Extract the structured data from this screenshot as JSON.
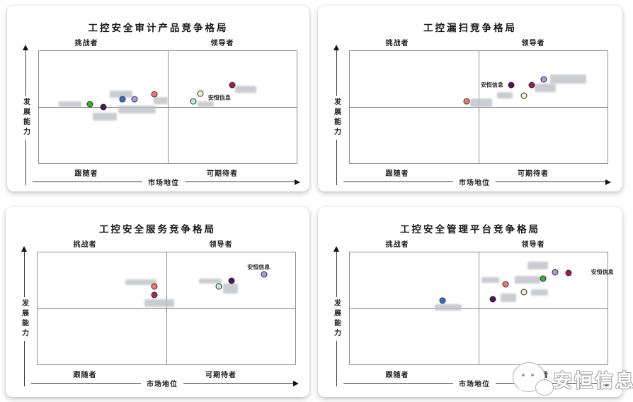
{
  "watermark": {
    "brand_text": "安恒信息",
    "logo": "wechat-speech-bubble-logo"
  },
  "chart_data": [
    {
      "type": "scatter",
      "title": "工控安全审计产品竞争格局",
      "xlabel": "市场地位",
      "ylabel": "发展能力",
      "quadrants": {
        "top_left": "挑战者",
        "top_right": "领导者",
        "bottom_left": "跟随者",
        "bottom_right": "可期待者"
      },
      "axis_note": "no numeric scale; x/y are % of plot area, y measured from top (higher capability = smaller y)",
      "highlight": {
        "label": "安恒信息",
        "x": 64.8,
        "y": 42.0,
        "align": "left"
      },
      "points": [
        {
          "name": "green",
          "color": "#3fae33",
          "x": 19.7,
          "y": 47.5
        },
        {
          "name": "dark-purple",
          "color": "#570a66",
          "x": 24.9,
          "y": 50.0
        },
        {
          "name": "blue",
          "color": "#2e6bd8",
          "x": 32.5,
          "y": 43.2
        },
        {
          "name": "lavender",
          "color": "#a89ae8",
          "x": 37.2,
          "y": 43.2
        },
        {
          "name": "salmon",
          "color": "#f4736b",
          "x": 44.8,
          "y": 38.3
        },
        {
          "name": "light-cyan",
          "color": "#b8ecdc",
          "x": 59.8,
          "y": 45.1
        },
        {
          "name": "pale-yellow",
          "color": "#f4f4c0",
          "x": 62.6,
          "y": 37.7
        },
        {
          "name": "magenta",
          "color": "#a61a5c",
          "x": 74.9,
          "y": 30.2
        }
      ],
      "redacted_blobs": [
        [
          7.7,
          45.1,
          8.7,
          4.9
        ],
        [
          27.6,
          35.2,
          8.7,
          6.8
        ],
        [
          30.9,
          48.8,
          14.5,
          6.8
        ],
        [
          20.8,
          54.9,
          9.3,
          7.4
        ],
        [
          44.5,
          41.4,
          5.5,
          6.2
        ],
        [
          61.5,
          45.1,
          6.3,
          4.9
        ],
        [
          76.2,
          30.9,
          8.2,
          6.2
        ]
      ]
    },
    {
      "type": "scatter",
      "title": "工控漏扫竞争格局",
      "xlabel": "市场地位",
      "ylabel": "发展能力",
      "quadrants": {
        "top_left": "挑战者",
        "top_right": "领导者",
        "bottom_left": "跟随者",
        "bottom_right": "可期待者"
      },
      "axis_note": "no numeric scale; x/y are % of plot area, y measured from top",
      "highlight": {
        "label": "安恒信息",
        "x": 60.7,
        "y": 30.1,
        "align": "right"
      },
      "points": [
        {
          "name": "salmon",
          "color": "#f4736b",
          "x": 45.4,
          "y": 44.9
        },
        {
          "name": "dark-purple",
          "color": "#570a66",
          "x": 62.6,
          "y": 30.1
        },
        {
          "name": "maroon",
          "color": "#a01f56",
          "x": 70.6,
          "y": 30.1
        },
        {
          "name": "lavender",
          "color": "#a89ae8",
          "x": 75.3,
          "y": 25.0
        },
        {
          "name": "pale-yellow",
          "color": "#f4f4c0",
          "x": 67.6,
          "y": 39.7
        }
      ],
      "redacted_blobs": [
        [
          46.8,
          42.3,
          8.3,
          7.7
        ],
        [
          57.1,
          36.5,
          6.1,
          5.8
        ],
        [
          71.7,
          28.8,
          8.3,
          7.7
        ],
        [
          77.8,
          21.2,
          13.9,
          7.7
        ]
      ]
    },
    {
      "type": "scatter",
      "title": "工控安全服务竞争格局",
      "xlabel": "市场地位",
      "ylabel": "发展能力",
      "quadrants": {
        "top_left": "挑战者",
        "top_right": "领导者",
        "bottom_left": "跟随者",
        "bottom_right": "可期待者"
      },
      "axis_note": "no numeric scale; x/y are % of plot area, y measured from top",
      "highlight": {
        "label": "安恒信息",
        "x": 85.8,
        "y": 13.6,
        "align": "center"
      },
      "points": [
        {
          "name": "salmon",
          "color": "#f4736b",
          "x": 45.2,
          "y": 30.5
        },
        {
          "name": "maroon",
          "color": "#b52356",
          "x": 45.2,
          "y": 37.7
        },
        {
          "name": "light-cyan",
          "color": "#b8ecdc",
          "x": 70.4,
          "y": 30.5
        },
        {
          "name": "dark-purple",
          "color": "#570a66",
          "x": 75.3,
          "y": 25.3
        },
        {
          "name": "lavender",
          "color": "#a89ae8",
          "x": 87.9,
          "y": 19.5
        }
      ],
      "redacted_blobs": [
        [
          34.0,
          24.0,
          12.1,
          5.2
        ],
        [
          41.4,
          41.6,
          11.5,
          7.1
        ],
        [
          62.5,
          23.4,
          8.8,
          4.5
        ],
        [
          72.0,
          27.9,
          5.8,
          9.1
        ]
      ]
    },
    {
      "type": "scatter",
      "title": "工控安全管理平台竞争格局",
      "xlabel": "市场地位",
      "ylabel": "发展能力",
      "quadrants": {
        "top_left": "挑战者",
        "top_right": "领导者",
        "bottom_left": "跟随者",
        "bottom_right": "可期待者"
      },
      "axis_note": "no numeric scale; x/y are % of plot area, y measured from top",
      "highlight": {
        "label": "安恒信息",
        "x": 92.8,
        "y": 17.5,
        "align": "left"
      },
      "points": [
        {
          "name": "blue",
          "color": "#2e6bd8",
          "x": 36.0,
          "y": 42.9
        },
        {
          "name": "dark-purple",
          "color": "#570a66",
          "x": 55.4,
          "y": 41.6
        },
        {
          "name": "salmon",
          "color": "#f4736b",
          "x": 60.4,
          "y": 28.6
        },
        {
          "name": "pale-yellow",
          "color": "#f4f4c0",
          "x": 67.6,
          "y": 35.7
        },
        {
          "name": "green",
          "color": "#3fae33",
          "x": 75.1,
          "y": 23.4
        },
        {
          "name": "lavender",
          "color": "#a89ae8",
          "x": 79.8,
          "y": 17.5
        },
        {
          "name": "magenta",
          "color": "#a61a5c",
          "x": 84.8,
          "y": 18.2
        }
      ],
      "redacted_blobs": [
        [
          69.0,
          8.4,
          7.8,
          6.5
        ],
        [
          51.0,
          22.1,
          6.9,
          5.2
        ],
        [
          64.0,
          20.8,
          10.0,
          7.1
        ],
        [
          70.4,
          33.1,
          6.6,
          5.8
        ],
        [
          58.4,
          37.0,
          6.1,
          7.1
        ],
        [
          33.0,
          46.1,
          10.5,
          5.8
        ]
      ]
    }
  ]
}
